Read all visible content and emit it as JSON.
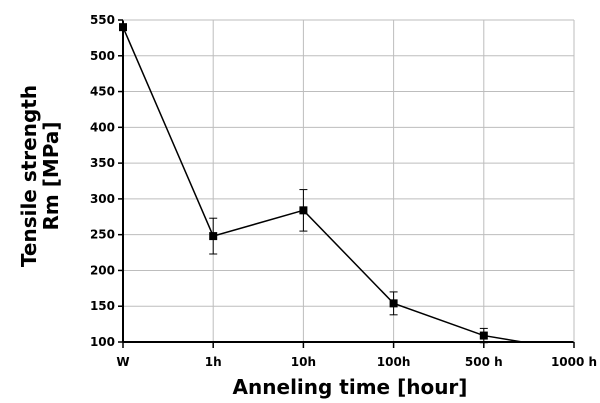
{
  "chart_data": {
    "type": "line",
    "categories": [
      "W",
      "1h",
      "10h",
      "100h",
      "500 h",
      "1000 h"
    ],
    "series": [
      {
        "values": [
          540,
          248,
          284,
          154,
          109,
          88
        ],
        "error": [
          0,
          25,
          29,
          16,
          10,
          0
        ]
      }
    ],
    "title": "",
    "xlabel": "Anneling time [hour]",
    "ylabel_lines": [
      "Tensile strength",
      "Rm [MPa]"
    ],
    "ylim": [
      100,
      550
    ],
    "yticks": [
      100,
      150,
      200,
      250,
      300,
      350,
      400,
      450,
      500,
      550
    ],
    "grid": true,
    "legend": "none",
    "colors": {
      "line": "#000000",
      "marker": "#000000",
      "grid": "#bdbdbd"
    }
  }
}
